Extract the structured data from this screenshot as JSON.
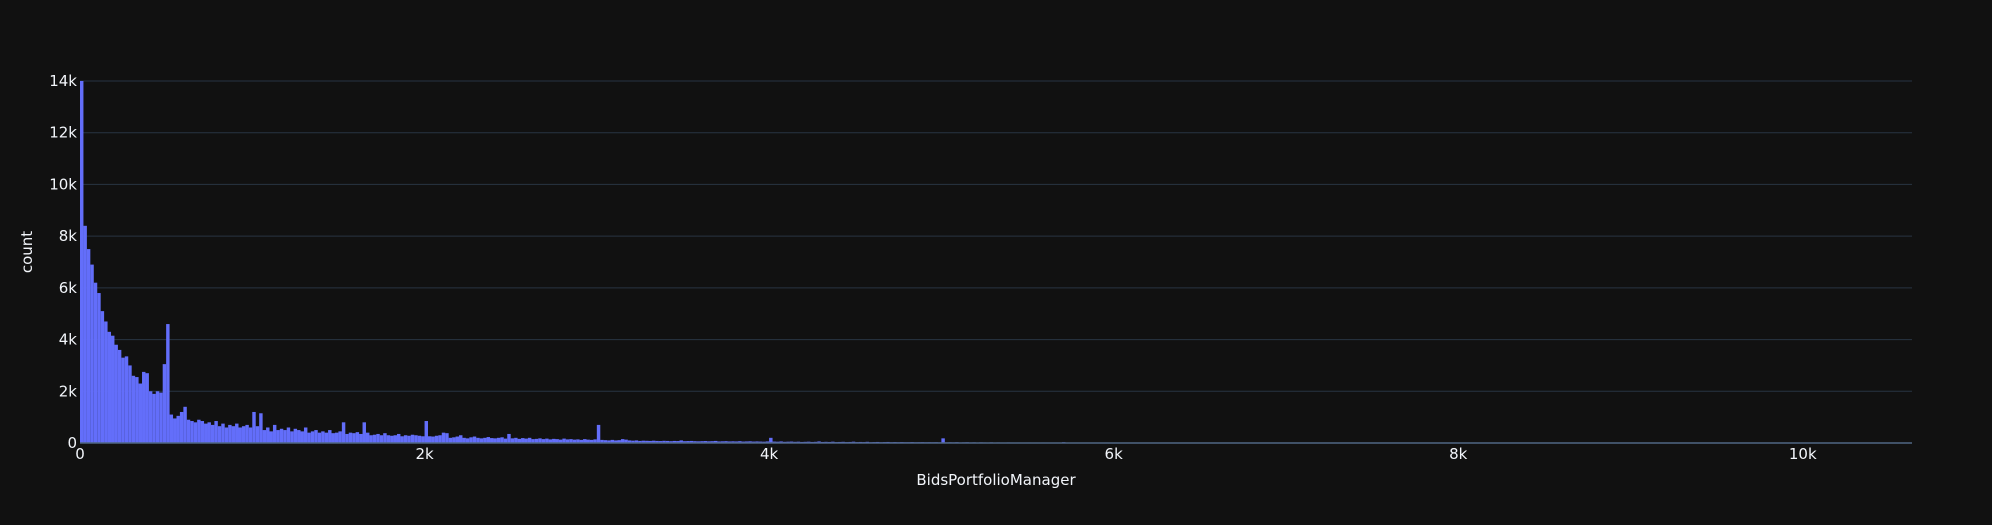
{
  "chart_data": {
    "type": "histogram",
    "x_label": "BidsPortfolioManager",
    "y_label": "count",
    "color": "#636efa",
    "grid": true,
    "xlim": [
      0,
      10634
    ],
    "ylim": [
      0,
      14000
    ],
    "xticks": [
      0,
      {
        "value": 2000,
        "label": "2k"
      },
      {
        "value": 4000,
        "label": "4k"
      },
      {
        "value": 6000,
        "label": "6k"
      },
      {
        "value": 8000,
        "label": "8k"
      },
      {
        "value": 10000,
        "label": "10k"
      }
    ],
    "yticks": [
      0,
      {
        "value": 2000,
        "label": "2k"
      },
      {
        "value": 4000,
        "label": "4k"
      },
      {
        "value": 6000,
        "label": "6k"
      },
      {
        "value": 8000,
        "label": "8k"
      },
      {
        "value": 10000,
        "label": "10k"
      },
      {
        "value": 12000,
        "label": "12k"
      },
      {
        "value": 14000,
        "label": "14k"
      }
    ],
    "bins": [
      0,
      20,
      40,
      60,
      80,
      100,
      120,
      140,
      160,
      180,
      200,
      220,
      240,
      260,
      280,
      300,
      320,
      340,
      360,
      380,
      400,
      420,
      440,
      460,
      480,
      500,
      520,
      540,
      560,
      580,
      600,
      620,
      640,
      660,
      680,
      700,
      720,
      740,
      760,
      780,
      800,
      820,
      840,
      860,
      880,
      900,
      920,
      940,
      960,
      980,
      1000,
      1020,
      1040,
      1060,
      1080,
      1100,
      1120,
      1140,
      1160,
      1180,
      1200,
      1220,
      1240,
      1260,
      1280,
      1300,
      1320,
      1340,
      1360,
      1380,
      1400,
      1420,
      1440,
      1460,
      1480,
      1500,
      1520,
      1540,
      1560,
      1580,
      1600,
      1620,
      1640,
      1660,
      1680,
      1700,
      1720,
      1740,
      1760,
      1780,
      1800,
      1820,
      1840,
      1860,
      1880,
      1900,
      1920,
      1940,
      1960,
      1980,
      2000,
      2020,
      2040,
      2060,
      2080,
      2100,
      2120,
      2140,
      2160,
      2180,
      2200,
      2220,
      2240,
      2260,
      2280,
      2300,
      2320,
      2340,
      2360,
      2380,
      2400,
      2420,
      2440,
      2460,
      2480,
      2500,
      2520,
      2540,
      2560,
      2580,
      2600,
      2620,
      2640,
      2660,
      2680,
      2700,
      2720,
      2740,
      2760,
      2780,
      2800,
      2820,
      2840,
      2860,
      2880,
      2900,
      2920,
      2940,
      2960,
      2980,
      3000,
      3020,
      3040,
      3060,
      3080,
      3100,
      3120,
      3140,
      3160,
      3180,
      3200,
      3220,
      3240,
      3260,
      3280,
      3300,
      3320,
      3340,
      3360,
      3380,
      3400,
      3420,
      3440,
      3460,
      3480,
      3500,
      3520,
      3540,
      3560,
      3580,
      3600,
      3620,
      3640,
      3660,
      3680,
      3700,
      3720,
      3740,
      3760,
      3780,
      3800,
      3820,
      3840,
      3860,
      3880,
      3900,
      3920,
      3940,
      3960,
      3980,
      4000,
      4020,
      4040,
      4060,
      4080,
      4100,
      4120,
      4140,
      4160,
      4180,
      4200,
      4220,
      4240,
      4260,
      4280,
      4300,
      4320,
      4340,
      4360,
      4380,
      4400,
      4420,
      4440,
      4460,
      4480,
      4500,
      4520,
      4540,
      4560,
      4580,
      4600,
      4620,
      4640,
      4660,
      4680,
      4700,
      4720,
      4740,
      4760,
      4780,
      4800,
      4820,
      4840,
      4860,
      4880,
      4900,
      4920,
      4940,
      4960,
      4980,
      5000,
      5020,
      5040,
      5060,
      5080,
      5100,
      5120,
      5140,
      5160,
      5180,
      5200,
      5220,
      5240,
      5260,
      5280,
      5300,
      5320,
      5340,
      5360,
      5380,
      5400,
      5420,
      5440,
      5460,
      5480,
      5500,
      5520,
      5540,
      5560,
      5580,
      5600,
      5620,
      5640,
      5660,
      5680,
      5700,
      5720,
      5740,
      5760,
      5780,
      5800,
      5820,
      5840,
      5860,
      5880,
      5900,
      5920,
      5940,
      5960,
      5980,
      6000
    ],
    "values": [
      14000,
      8400,
      7500,
      6900,
      6200,
      5800,
      5100,
      4700,
      4300,
      4150,
      3800,
      3600,
      3300,
      3350,
      3000,
      2600,
      2550,
      2300,
      2750,
      2700,
      2000,
      1900,
      2000,
      1950,
      3050,
      4600,
      1100,
      950,
      1050,
      1200,
      1400,
      900,
      850,
      800,
      900,
      850,
      750,
      800,
      700,
      850,
      650,
      750,
      600,
      700,
      650,
      750,
      600,
      650,
      700,
      600,
      1200,
      650,
      1150,
      500,
      600,
      450,
      700,
      500,
      550,
      500,
      600,
      450,
      550,
      500,
      450,
      600,
      400,
      450,
      500,
      400,
      450,
      400,
      500,
      380,
      400,
      450,
      800,
      350,
      400,
      380,
      420,
      350,
      800,
      400,
      300,
      320,
      350,
      300,
      380,
      300,
      280,
      300,
      350,
      260,
      300,
      280,
      320,
      300,
      280,
      260,
      850,
      260,
      250,
      280,
      300,
      400,
      380,
      200,
      220,
      250,
      300,
      200,
      180,
      220,
      250,
      200,
      180,
      200,
      230,
      190,
      180,
      200,
      220,
      170,
      350,
      180,
      200,
      160,
      190,
      170,
      200,
      150,
      160,
      180,
      150,
      170,
      140,
      160,
      150,
      130,
      170,
      140,
      150,
      130,
      140,
      120,
      150,
      130,
      120,
      140,
      700,
      120,
      110,
      100,
      120,
      100,
      110,
      150,
      130,
      100,
      90,
      100,
      80,
      90,
      85,
      80,
      90,
      80,
      75,
      85,
      80,
      70,
      80,
      75,
      100,
      70,
      75,
      80,
      70,
      65,
      70,
      75,
      65,
      70,
      80,
      60,
      65,
      70,
      60,
      65,
      60,
      70,
      55,
      60,
      65,
      55,
      60,
      55,
      50,
      60,
      200,
      55,
      50,
      60,
      45,
      50,
      55,
      45,
      50,
      40,
      45,
      50,
      40,
      45,
      60,
      40,
      45,
      40,
      50,
      35,
      40,
      45,
      35,
      40,
      50,
      35,
      40,
      35,
      45,
      30,
      35,
      40,
      30,
      35,
      40,
      30,
      35,
      30,
      35,
      30,
      30,
      35,
      28,
      30,
      32,
      28,
      30,
      28,
      30,
      25,
      180,
      25,
      28,
      25,
      30,
      22,
      25,
      28,
      22,
      25,
      20,
      25,
      22,
      20,
      25,
      18,
      22,
      20,
      18,
      22,
      20,
      18,
      20,
      16,
      18,
      20,
      16,
      18,
      15,
      20,
      16,
      15,
      18,
      14,
      15,
      30,
      14,
      15,
      13,
      14,
      15,
      12,
      14,
      13,
      12,
      14,
      12,
      13,
      12,
      12
    ]
  }
}
